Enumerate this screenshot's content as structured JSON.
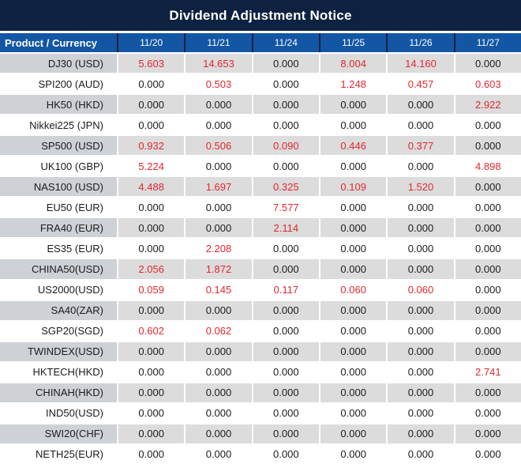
{
  "title": "Dividend Adjustment Notice",
  "colors": {
    "navy": "#0d2240",
    "header_blue": "#1356a4",
    "product_col_gray": "#ced2d6",
    "cell_gray": "#dcdcdc",
    "red": "#e2282e",
    "text": "#1b1b1b"
  },
  "chart_data": {
    "type": "table",
    "title": "Dividend Adjustment Notice",
    "columns": [
      "Product / Currency",
      "11/20",
      "11/21",
      "11/24",
      "11/25",
      "11/26",
      "11/27"
    ],
    "rows": [
      {
        "product": "DJ30 (USD)",
        "values": [
          "5.603",
          "14.653",
          "0.000",
          "8.004",
          "14.160",
          "0.000"
        ],
        "red": [
          true,
          true,
          false,
          true,
          true,
          false
        ]
      },
      {
        "product": "SPI200 (AUD)",
        "values": [
          "0.000",
          "0.503",
          "0.000",
          "1.248",
          "0.457",
          "0.603"
        ],
        "red": [
          false,
          true,
          false,
          true,
          true,
          true
        ]
      },
      {
        "product": "HK50 (HKD)",
        "values": [
          "0.000",
          "0.000",
          "0.000",
          "0.000",
          "0.000",
          "2.922"
        ],
        "red": [
          false,
          false,
          false,
          false,
          false,
          true
        ]
      },
      {
        "product": "Nikkei225 (JPN)",
        "values": [
          "0.000",
          "0.000",
          "0.000",
          "0.000",
          "0.000",
          "0.000"
        ],
        "red": [
          false,
          false,
          false,
          false,
          false,
          false
        ]
      },
      {
        "product": "SP500 (USD)",
        "values": [
          "0.932",
          "0.506",
          "0.090",
          "0.446",
          "0.377",
          "0.000"
        ],
        "red": [
          true,
          true,
          true,
          true,
          true,
          false
        ]
      },
      {
        "product": "UK100 (GBP)",
        "values": [
          "5.224",
          "0.000",
          "0.000",
          "0.000",
          "0.000",
          "4.898"
        ],
        "red": [
          true,
          false,
          false,
          false,
          false,
          true
        ]
      },
      {
        "product": "NAS100 (USD)",
        "values": [
          "4.488",
          "1.697",
          "0.325",
          "0.109",
          "1.520",
          "0.000"
        ],
        "red": [
          true,
          true,
          true,
          true,
          true,
          false
        ]
      },
      {
        "product": "EU50 (EUR)",
        "values": [
          "0.000",
          "0.000",
          "7.577",
          "0.000",
          "0.000",
          "0.000"
        ],
        "red": [
          false,
          false,
          true,
          false,
          false,
          false
        ]
      },
      {
        "product": "FRA40 (EUR)",
        "values": [
          "0.000",
          "0.000",
          "2.114",
          "0.000",
          "0.000",
          "0.000"
        ],
        "red": [
          false,
          false,
          true,
          false,
          false,
          false
        ]
      },
      {
        "product": "ES35 (EUR)",
        "values": [
          "0.000",
          "2.208",
          "0.000",
          "0.000",
          "0.000",
          "0.000"
        ],
        "red": [
          false,
          true,
          false,
          false,
          false,
          false
        ]
      },
      {
        "product": "CHINA50(USD)",
        "values": [
          "2.056",
          "1.872",
          "0.000",
          "0.000",
          "0.000",
          "0.000"
        ],
        "red": [
          true,
          true,
          false,
          false,
          false,
          false
        ]
      },
      {
        "product": "US2000(USD)",
        "values": [
          "0.059",
          "0.145",
          "0.117",
          "0.060",
          "0.060",
          "0.000"
        ],
        "red": [
          true,
          true,
          true,
          true,
          true,
          false
        ]
      },
      {
        "product": "SA40(ZAR)",
        "values": [
          "0.000",
          "0.000",
          "0.000",
          "0.000",
          "0.000",
          "0.000"
        ],
        "red": [
          false,
          false,
          false,
          false,
          false,
          false
        ]
      },
      {
        "product": "SGP20(SGD)",
        "values": [
          "0.602",
          "0.062",
          "0.000",
          "0.000",
          "0.000",
          "0.000"
        ],
        "red": [
          true,
          true,
          false,
          false,
          false,
          false
        ]
      },
      {
        "product": "TWINDEX(USD)",
        "values": [
          "0.000",
          "0.000",
          "0.000",
          "0.000",
          "0.000",
          "0.000"
        ],
        "red": [
          false,
          false,
          false,
          false,
          false,
          false
        ]
      },
      {
        "product": "HKTECH(HKD)",
        "values": [
          "0.000",
          "0.000",
          "0.000",
          "0.000",
          "0.000",
          "2.741"
        ],
        "red": [
          false,
          false,
          false,
          false,
          false,
          true
        ]
      },
      {
        "product": "CHINAH(HKD)",
        "values": [
          "0.000",
          "0.000",
          "0.000",
          "0.000",
          "0.000",
          "0.000"
        ],
        "red": [
          false,
          false,
          false,
          false,
          false,
          false
        ]
      },
      {
        "product": "IND50(USD)",
        "values": [
          "0.000",
          "0.000",
          "0.000",
          "0.000",
          "0.000",
          "0.000"
        ],
        "red": [
          false,
          false,
          false,
          false,
          false,
          false
        ]
      },
      {
        "product": "SWI20(CHF)",
        "values": [
          "0.000",
          "0.000",
          "0.000",
          "0.000",
          "0.000",
          "0.000"
        ],
        "red": [
          false,
          false,
          false,
          false,
          false,
          false
        ]
      },
      {
        "product": "NETH25(EUR)",
        "values": [
          "0.000",
          "0.000",
          "0.000",
          "0.000",
          "0.000",
          "0.000"
        ],
        "red": [
          false,
          false,
          false,
          false,
          false,
          false
        ]
      }
    ]
  }
}
